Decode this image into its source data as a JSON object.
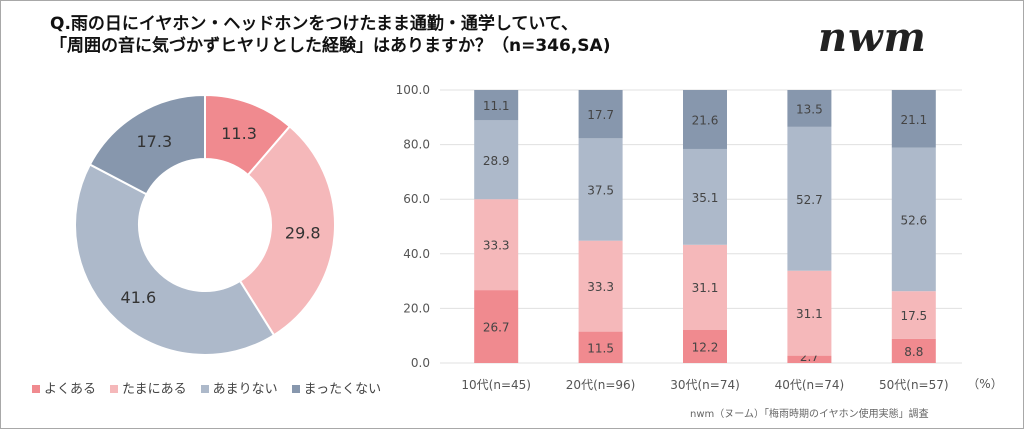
{
  "title_line1": "Q.雨の日にイヤホン・ヘッドホンをつけたまま通勤・通学していて、",
  "title_line2": "「周囲の音に気づかずヒヤリとした経験」はありますか？（n=346,SA)",
  "logo": "nwm",
  "credit": "nwm（ヌーム）「梅雨時期のイヤホン使用実態」調査",
  "legend": [
    {
      "label": "よくある",
      "color": "#f08a8f"
    },
    {
      "label": "たまにある",
      "color": "#f5b8ba"
    },
    {
      "label": "あまりない",
      "color": "#adb9ca"
    },
    {
      "label": "まったくない",
      "color": "#8797ad"
    }
  ],
  "chart_data": [
    {
      "type": "pie",
      "subtype": "donut",
      "categories": [
        "よくある",
        "たまにある",
        "あまりない",
        "まったくない"
      ],
      "values": [
        11.3,
        29.8,
        41.6,
        17.3
      ],
      "data_labels": [
        "11.3",
        "29.8",
        "41.6",
        "17.3"
      ]
    },
    {
      "type": "bar",
      "stacked": true,
      "categories": [
        "10代(n=45)",
        "20代(n=96)",
        "30代(n=74)",
        "40代(n=74)",
        "50代(n=57)"
      ],
      "unit_label": "（%）",
      "ylim": [
        0,
        100
      ],
      "yticks": [
        "0.0",
        "20.0",
        "40.0",
        "60.0",
        "80.0",
        "100.0"
      ],
      "grid": true,
      "series": [
        {
          "name": "よくある",
          "values": [
            26.7,
            11.5,
            12.2,
            2.7,
            8.8
          ]
        },
        {
          "name": "たまにある",
          "values": [
            33.3,
            33.3,
            31.1,
            31.1,
            17.5
          ]
        },
        {
          "name": "あまりない",
          "values": [
            28.9,
            37.5,
            35.1,
            52.7,
            52.6
          ]
        },
        {
          "name": "まったくない",
          "values": [
            11.1,
            17.7,
            21.6,
            13.5,
            21.1
          ]
        }
      ]
    }
  ]
}
